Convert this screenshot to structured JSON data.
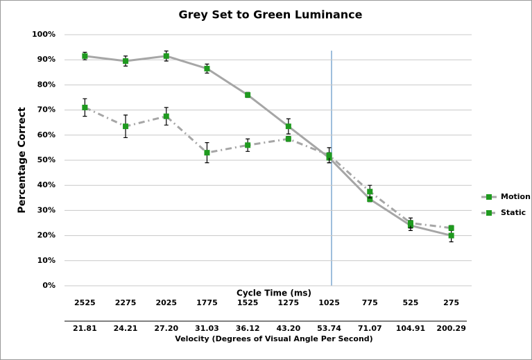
{
  "chart_data": {
    "type": "line",
    "title": "Grey Set to Green Luminance",
    "y_label": "Percentage Correct",
    "x_label": "Cycle Time (ms)",
    "x2_label": "Velocity (Degrees of Visual Angle Per Second)",
    "categories": [
      "2525",
      "2275",
      "2025",
      "1775",
      "1525",
      "1275",
      "1025",
      "775",
      "525",
      "275"
    ],
    "x2_categories": [
      "21.81",
      "24.21",
      "27.20",
      "31.03",
      "36.12",
      "43.20",
      "53.74",
      "71.07",
      "104.91",
      "200.29"
    ],
    "series": [
      {
        "name": "Motion",
        "color": "#1f9a1f",
        "line_color": "#a6a6a6",
        "line_style": "solid",
        "values": [
          91.5,
          89.5,
          91.5,
          86.5,
          76,
          63.5,
          51,
          34.5,
          24,
          20
        ],
        "errors": [
          1.5,
          2,
          2,
          1.8,
          1,
          3,
          2,
          1,
          2,
          2.5
        ]
      },
      {
        "name": "Static",
        "color": "#1f9a1f",
        "line_color": "#a6a6a6",
        "line_style": "dashdot",
        "values": [
          71,
          63.5,
          67.5,
          53,
          56,
          58.5,
          52,
          37.5,
          25,
          23
        ],
        "errors": [
          3.5,
          4.5,
          3.5,
          4,
          2.5,
          1,
          3,
          2.5,
          2,
          1
        ]
      }
    ],
    "ylim": [
      0,
      100
    ],
    "yticks": [
      {
        "value": 0,
        "label": "0%"
      },
      {
        "value": 10,
        "label": "10%"
      },
      {
        "value": 20,
        "label": "20%"
      },
      {
        "value": 30,
        "label": "30%"
      },
      {
        "value": 40,
        "label": "40%"
      },
      {
        "value": 50,
        "label": "50%"
      },
      {
        "value": 60,
        "label": "60%"
      },
      {
        "value": 70,
        "label": "70%"
      },
      {
        "value": 80,
        "label": "80%"
      },
      {
        "value": 90,
        "label": "90%"
      },
      {
        "value": 100,
        "label": "100%"
      }
    ],
    "grid": true,
    "legend": "right"
  }
}
